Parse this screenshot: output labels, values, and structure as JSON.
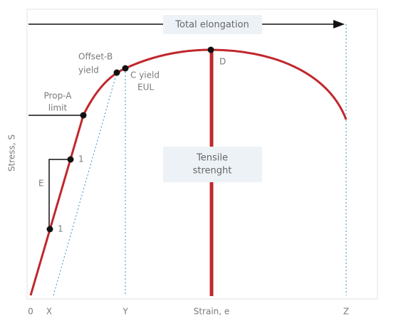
{
  "axes": {
    "y_label": "Stress, S",
    "x_label": "Strain, e",
    "x_points": [
      "0",
      "X",
      "Y",
      "Z"
    ]
  },
  "labels": {
    "total_elongation": "Total elongation",
    "tensile_strength": [
      "Tensile",
      "strenght"
    ],
    "offset_yield": [
      "Offset-B",
      "yield"
    ],
    "c_yield": [
      "C yield",
      "EUL"
    ],
    "prop_limit": [
      "Prop-A",
      "limit"
    ],
    "point_d": "D",
    "modulus": "E",
    "slope_run": "1",
    "slope_rise": "1"
  }
}
